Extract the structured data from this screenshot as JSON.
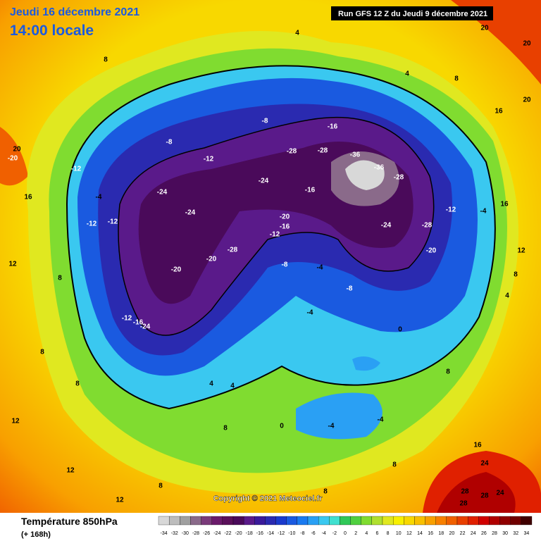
{
  "header": {
    "date": "Jeudi 16 décembre 2021",
    "time": "14:00 locale",
    "run": "Run GFS 12 Z du Jeudi 9 décembre 2021"
  },
  "copyright": "Copyright © 2021 Meteociel.fr",
  "legend": {
    "title": "Température 850hPa",
    "lead": "(+ 168h)",
    "values": [
      -34,
      -32,
      -30,
      -28,
      -26,
      -24,
      -22,
      -20,
      -18,
      -16,
      -14,
      -12,
      -10,
      -8,
      -6,
      -4,
      -2,
      0,
      2,
      4,
      6,
      8,
      10,
      12,
      14,
      16,
      18,
      20,
      22,
      24,
      26,
      28,
      30,
      32,
      34
    ],
    "colors": [
      "#d8d8d8",
      "#bdbdbd",
      "#a0a0a0",
      "#8a6a8a",
      "#7a3a7a",
      "#6a1a6a",
      "#5a105a",
      "#4a0a5a",
      "#5a1a8a",
      "#3a1a9a",
      "#2a2ab0",
      "#1a3acc",
      "#1a5ae0",
      "#1a7af0",
      "#2aa0f4",
      "#3ac8f0",
      "#40e0d0",
      "#30c858",
      "#50d040",
      "#80dc30",
      "#b0e030",
      "#e0e820",
      "#f8f000",
      "#f8d800",
      "#f8c000",
      "#f8a000",
      "#f88000",
      "#f06000",
      "#e84000",
      "#e02000",
      "#d00000",
      "#b00000",
      "#900000",
      "#700000",
      "#400000"
    ]
  },
  "contour_labels": [
    4,
    20,
    20,
    20,
    16,
    4,
    8,
    -8,
    -8,
    -28,
    -16,
    -28,
    -36,
    -36,
    -28,
    -24,
    -28,
    -20,
    -12,
    -4,
    16,
    12,
    8,
    4,
    -16,
    -20,
    -16,
    -12,
    -8,
    -4,
    -8,
    -28,
    -20,
    -20,
    -24,
    -24,
    -16,
    -24,
    -12,
    -12,
    -12,
    -20,
    16,
    12,
    8,
    8,
    8,
    4,
    4,
    -4,
    0,
    -4,
    -4,
    0,
    8,
    16,
    24,
    28,
    28,
    28,
    24,
    8,
    8,
    8,
    12,
    12,
    8,
    12,
    8,
    20,
    -24,
    -12,
    -12,
    -4
  ]
}
